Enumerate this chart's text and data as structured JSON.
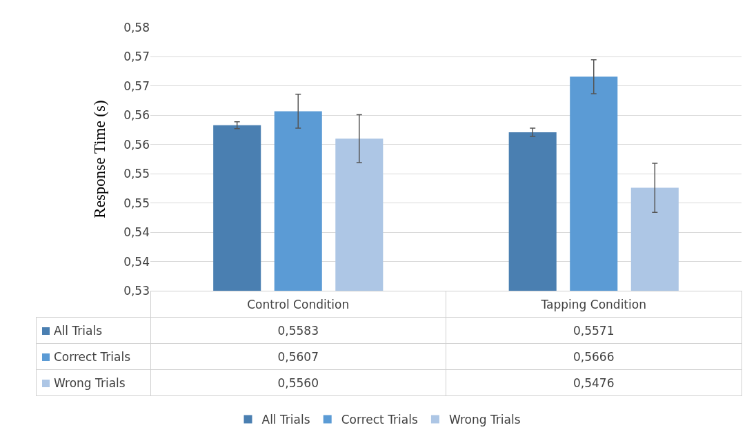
{
  "chart_data": {
    "type": "bar",
    "ylabel": "Response Time (s)",
    "categories": [
      "Control Condition",
      "Tapping Condition"
    ],
    "series": [
      {
        "name": "All Trials",
        "color": "#4a7fb1",
        "values": [
          0.5583,
          0.5571
        ],
        "errors": [
          0.0006,
          0.0007
        ],
        "value_labels": [
          "0,5583",
          "0,5571"
        ]
      },
      {
        "name": "Correct Trials",
        "color": "#5b9bd5",
        "values": [
          0.5607,
          0.5666
        ],
        "errors": [
          0.0029,
          0.0029
        ],
        "value_labels": [
          "0,5607",
          "0,5666"
        ]
      },
      {
        "name": "Wrong Trials",
        "color": "#adc6e5",
        "values": [
          0.556,
          0.5476
        ],
        "errors": [
          0.0041,
          0.0042
        ],
        "value_labels": [
          "0,5560",
          "0,5476"
        ]
      }
    ],
    "ylim": [
      0.53,
      0.575
    ],
    "yticks": [
      {
        "value": 0.53,
        "label": "0,53"
      },
      {
        "value": 0.535,
        "label": "0,54"
      },
      {
        "value": 0.54,
        "label": "0,54"
      },
      {
        "value": 0.545,
        "label": "0,55"
      },
      {
        "value": 0.55,
        "label": "0,55"
      },
      {
        "value": 0.555,
        "label": "0,56"
      },
      {
        "value": 0.56,
        "label": "0,56"
      },
      {
        "value": 0.565,
        "label": "0,57"
      },
      {
        "value": 0.57,
        "label": "0,57"
      },
      {
        "value": 0.575,
        "label": "0,58"
      }
    ],
    "grid": "y",
    "legend": "bottom"
  }
}
